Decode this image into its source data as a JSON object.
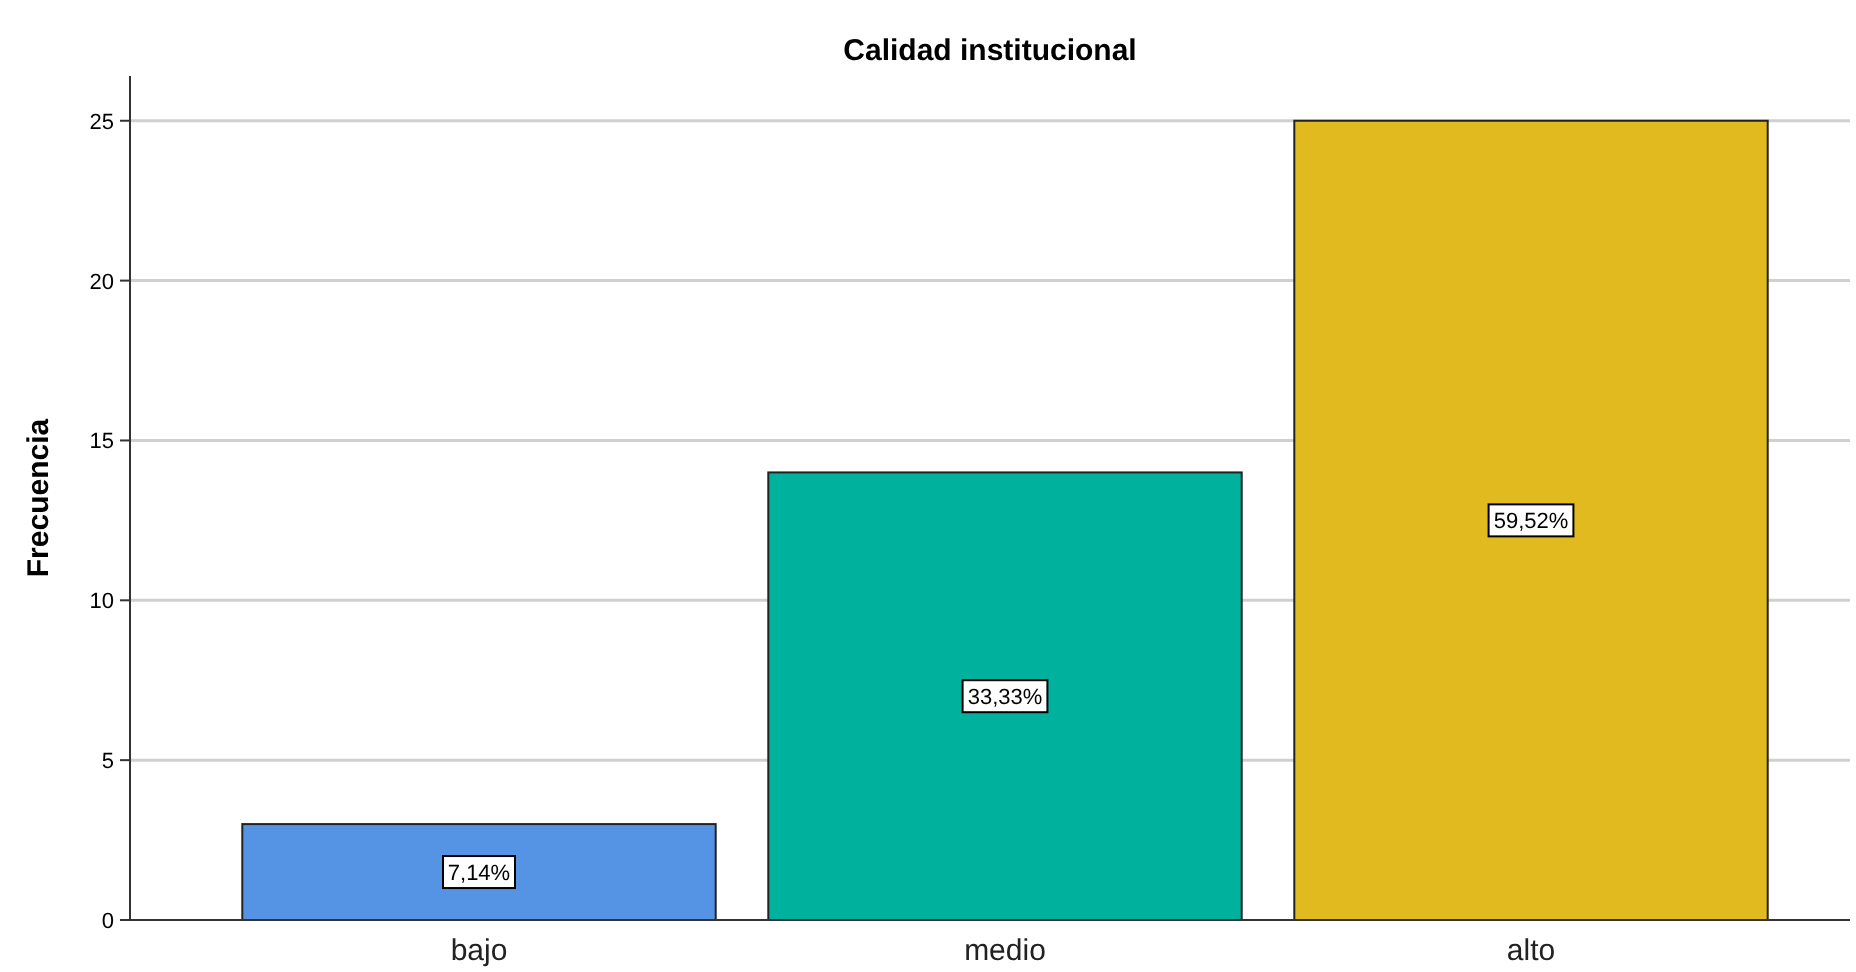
{
  "chart_data": {
    "type": "bar",
    "title": "Calidad institucional",
    "ylabel": "Frecuencia",
    "categories": [
      "bajo",
      "medio",
      "alto"
    ],
    "values": [
      3,
      14,
      25
    ],
    "colors": [
      "#5594e4",
      "#00b29d",
      "#e0ba1e"
    ],
    "annotations": [
      {
        "text": "7,14%",
        "x": "bajo",
        "y": 1.5
      },
      {
        "text": "33,33%",
        "x": "medio",
        "y": 7
      },
      {
        "text": "59,52%",
        "x": "alto",
        "y": 12.5
      }
    ],
    "ylim": [
      0,
      26.4
    ],
    "yticks": [
      0,
      5,
      10,
      15,
      20,
      25
    ],
    "grid": "y"
  }
}
